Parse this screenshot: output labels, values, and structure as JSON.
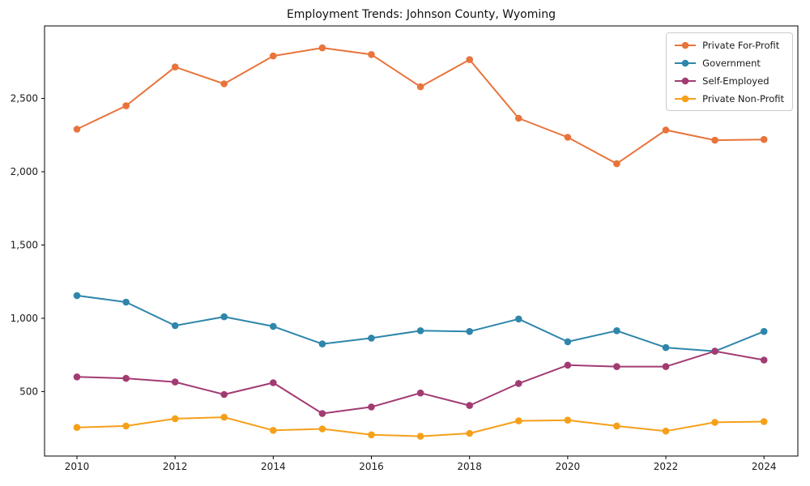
{
  "chart_data": {
    "type": "line",
    "title": "Employment Trends: Johnson County, Wyoming",
    "x": [
      2010,
      2011,
      2012,
      2013,
      2014,
      2015,
      2016,
      2017,
      2018,
      2019,
      2020,
      2021,
      2022,
      2023,
      2024
    ],
    "series": [
      {
        "name": "Private For-Profit",
        "color": "#e8743b",
        "values": [
          2290,
          2450,
          2715,
          2600,
          2790,
          2845,
          2800,
          2580,
          2765,
          2365,
          2235,
          2055,
          2285,
          2215,
          2220
        ]
      },
      {
        "name": "Government",
        "color": "#2e86ab",
        "values": [
          1155,
          1110,
          950,
          1010,
          945,
          825,
          865,
          915,
          910,
          995,
          840,
          915,
          800,
          775,
          910
        ]
      },
      {
        "name": "Self-Employed",
        "color": "#a23b72",
        "values": [
          600,
          590,
          565,
          480,
          560,
          350,
          395,
          490,
          405,
          555,
          680,
          670,
          670,
          775,
          715
        ]
      },
      {
        "name": "Private Non-Profit",
        "color": "#f6a01a",
        "values": [
          255,
          265,
          315,
          325,
          235,
          245,
          205,
          195,
          215,
          300,
          305,
          265,
          230,
          290,
          295
        ]
      }
    ],
    "x_ticks": [
      2010,
      2012,
      2014,
      2016,
      2018,
      2020,
      2022,
      2024
    ],
    "x_tick_labels": [
      "2010",
      "2012",
      "2014",
      "2016",
      "2018",
      "2020",
      "2022",
      "2024"
    ],
    "y_ticks": [
      500,
      1000,
      1500,
      2000,
      2500
    ],
    "y_tick_labels": [
      "500",
      "1,000",
      "1,500",
      "2,000",
      "2,500"
    ],
    "xlim": [
      2009.34,
      2024.69
    ],
    "ylim": [
      60,
      2995
    ],
    "grid": false,
    "legend_position": "upper right",
    "axis_color": "#000000",
    "text_color": "#1a1a1a",
    "background": "#ffffff"
  }
}
